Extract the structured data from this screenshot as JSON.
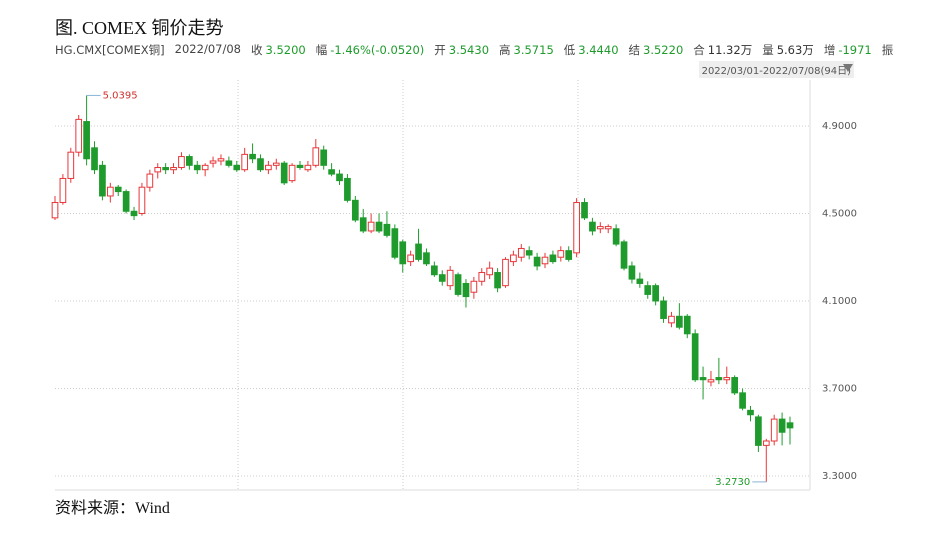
{
  "chart_data": {
    "type": "candlestick",
    "title": "图. COMEX 铜价走势",
    "symbol": "HG.CMX[COMEX铜]",
    "date": "2022/07/08",
    "stats": [
      {
        "label": "收",
        "value": "3.5200",
        "color": "#1e9b2c"
      },
      {
        "label": "幅",
        "value": "-1.46%(-0.0520)",
        "color": "#1e9b2c"
      },
      {
        "label": "开",
        "value": "3.5430",
        "color": "#1e9b2c"
      },
      {
        "label": "高",
        "value": "3.5715",
        "color": "#1e9b2c"
      },
      {
        "label": "低",
        "value": "3.4440",
        "color": "#1e9b2c"
      },
      {
        "label": "结",
        "value": "3.5220",
        "color": "#1e9b2c"
      },
      {
        "label": "合",
        "value": "11.32万",
        "color": "#333333"
      },
      {
        "label": "量",
        "value": "5.63万",
        "color": "#333333"
      },
      {
        "label": "增",
        "value": "-1971",
        "color": "#1e9b2c"
      },
      {
        "label": "振"
      }
    ],
    "range": "2022/03/01-2022/07/08(94日)",
    "high_label": "5.0395",
    "low_label": "3.2730",
    "source": "资料来源：Wind",
    "up_color": "#e8363a",
    "down_color": "#1e9b2c",
    "grid": true,
    "ylim": [
      3.236,
      5.11
    ],
    "yticks": [
      {
        "value": 3.3,
        "label": "3.3000"
      },
      {
        "value": 3.7,
        "label": "3.7000"
      },
      {
        "value": 4.1,
        "label": "4.1000"
      },
      {
        "value": 4.5,
        "label": "4.5000"
      },
      {
        "value": 4.9,
        "label": "4.9000"
      }
    ],
    "ohlc": [
      [
        4.48,
        4.58,
        4.47,
        4.55
      ],
      [
        4.55,
        4.68,
        4.54,
        4.66
      ],
      [
        4.66,
        4.8,
        4.64,
        4.78
      ],
      [
        4.78,
        4.95,
        4.76,
        4.93
      ],
      [
        4.92,
        5.0395,
        4.72,
        4.75
      ],
      [
        4.8,
        4.83,
        4.68,
        4.7
      ],
      [
        4.72,
        4.74,
        4.56,
        4.58
      ],
      [
        4.58,
        4.64,
        4.55,
        4.62
      ],
      [
        4.62,
        4.63,
        4.58,
        4.6
      ],
      [
        4.6,
        4.61,
        4.5,
        4.51
      ],
      [
        4.51,
        4.53,
        4.47,
        4.49
      ],
      [
        4.5,
        4.64,
        4.49,
        4.62
      ],
      [
        4.62,
        4.7,
        4.6,
        4.68
      ],
      [
        4.69,
        4.73,
        4.66,
        4.71
      ],
      [
        4.71,
        4.73,
        4.68,
        4.7
      ],
      [
        4.7,
        4.73,
        4.68,
        4.71
      ],
      [
        4.71,
        4.78,
        4.7,
        4.76
      ],
      [
        4.76,
        4.77,
        4.7,
        4.72
      ],
      [
        4.72,
        4.74,
        4.68,
        4.7
      ],
      [
        4.7,
        4.73,
        4.67,
        4.72
      ],
      [
        4.73,
        4.76,
        4.71,
        4.74
      ],
      [
        4.74,
        4.77,
        4.72,
        4.75
      ],
      [
        4.74,
        4.76,
        4.71,
        4.72
      ],
      [
        4.72,
        4.74,
        4.69,
        4.7
      ],
      [
        4.7,
        4.8,
        4.69,
        4.77
      ],
      [
        4.77,
        4.82,
        4.73,
        4.75
      ],
      [
        4.75,
        4.77,
        4.69,
        4.7
      ],
      [
        4.7,
        4.74,
        4.68,
        4.72
      ],
      [
        4.72,
        4.75,
        4.7,
        4.73
      ],
      [
        4.73,
        4.74,
        4.63,
        4.64
      ],
      [
        4.65,
        4.73,
        4.64,
        4.72
      ],
      [
        4.72,
        4.74,
        4.7,
        4.71
      ],
      [
        4.7,
        4.74,
        4.69,
        4.72
      ],
      [
        4.72,
        4.84,
        4.71,
        4.8
      ],
      [
        4.79,
        4.81,
        4.7,
        4.72
      ],
      [
        4.7,
        4.73,
        4.67,
        4.68
      ],
      [
        4.68,
        4.7,
        4.63,
        4.65
      ],
      [
        4.66,
        4.68,
        4.55,
        4.56
      ],
      [
        4.56,
        4.58,
        4.46,
        4.47
      ],
      [
        4.48,
        4.52,
        4.41,
        4.42
      ],
      [
        4.42,
        4.5,
        4.41,
        4.46
      ],
      [
        4.46,
        4.5,
        4.41,
        4.42
      ],
      [
        4.45,
        4.51,
        4.39,
        4.4
      ],
      [
        4.43,
        4.45,
        4.29,
        4.3
      ],
      [
        4.37,
        4.38,
        4.23,
        4.27
      ],
      [
        4.28,
        4.33,
        4.26,
        4.31
      ],
      [
        4.36,
        4.43,
        4.28,
        4.29
      ],
      [
        4.32,
        4.34,
        4.26,
        4.27
      ],
      [
        4.26,
        4.28,
        4.21,
        4.22
      ],
      [
        4.22,
        4.24,
        4.17,
        4.19
      ],
      [
        4.17,
        4.26,
        4.15,
        4.24
      ],
      [
        4.22,
        4.23,
        4.12,
        4.13
      ],
      [
        4.18,
        4.2,
        4.07,
        4.12
      ],
      [
        4.14,
        4.21,
        4.11,
        4.19
      ],
      [
        4.19,
        4.25,
        4.17,
        4.23
      ],
      [
        4.22,
        4.28,
        4.2,
        4.25
      ],
      [
        4.23,
        4.25,
        4.14,
        4.16
      ],
      [
        4.17,
        4.3,
        4.16,
        4.29
      ],
      [
        4.28,
        4.33,
        4.26,
        4.31
      ],
      [
        4.3,
        4.36,
        4.28,
        4.34
      ],
      [
        4.33,
        4.35,
        4.29,
        4.31
      ],
      [
        4.3,
        4.32,
        4.24,
        4.26
      ],
      [
        4.27,
        4.32,
        4.25,
        4.3
      ],
      [
        4.31,
        4.33,
        4.27,
        4.28
      ],
      [
        4.3,
        4.35,
        4.28,
        4.33
      ],
      [
        4.33,
        4.35,
        4.28,
        4.29
      ],
      [
        4.32,
        4.57,
        4.3,
        4.55
      ],
      [
        4.55,
        4.57,
        4.47,
        4.48
      ],
      [
        4.46,
        4.48,
        4.4,
        4.42
      ],
      [
        4.43,
        4.46,
        4.41,
        4.44
      ],
      [
        4.43,
        4.45,
        4.41,
        4.44
      ],
      [
        4.43,
        4.45,
        4.35,
        4.36
      ],
      [
        4.37,
        4.38,
        4.24,
        4.25
      ],
      [
        4.26,
        4.28,
        4.18,
        4.2
      ],
      [
        4.2,
        4.23,
        4.16,
        4.18
      ],
      [
        4.17,
        4.19,
        4.11,
        4.13
      ],
      [
        4.17,
        4.18,
        4.08,
        4.1
      ],
      [
        4.1,
        4.12,
        4.0,
        4.02
      ],
      [
        4.0,
        4.05,
        3.98,
        4.03
      ],
      [
        4.03,
        4.09,
        3.97,
        3.98
      ],
      [
        4.03,
        4.04,
        3.93,
        3.95
      ],
      [
        3.95,
        3.97,
        3.73,
        3.74
      ],
      [
        3.75,
        3.8,
        3.65,
        3.74
      ],
      [
        3.73,
        3.78,
        3.71,
        3.74
      ],
      [
        3.75,
        3.84,
        3.72,
        3.74
      ],
      [
        3.74,
        3.8,
        3.72,
        3.75
      ],
      [
        3.75,
        3.76,
        3.67,
        3.68
      ],
      [
        3.68,
        3.7,
        3.6,
        3.61
      ],
      [
        3.6,
        3.62,
        3.55,
        3.58
      ],
      [
        3.57,
        3.58,
        3.41,
        3.44
      ],
      [
        3.44,
        3.47,
        3.273,
        3.46
      ],
      [
        3.46,
        3.58,
        3.44,
        3.56
      ],
      [
        3.56,
        3.59,
        3.44,
        3.5
      ],
      [
        3.543,
        3.5715,
        3.444,
        3.52
      ]
    ]
  }
}
